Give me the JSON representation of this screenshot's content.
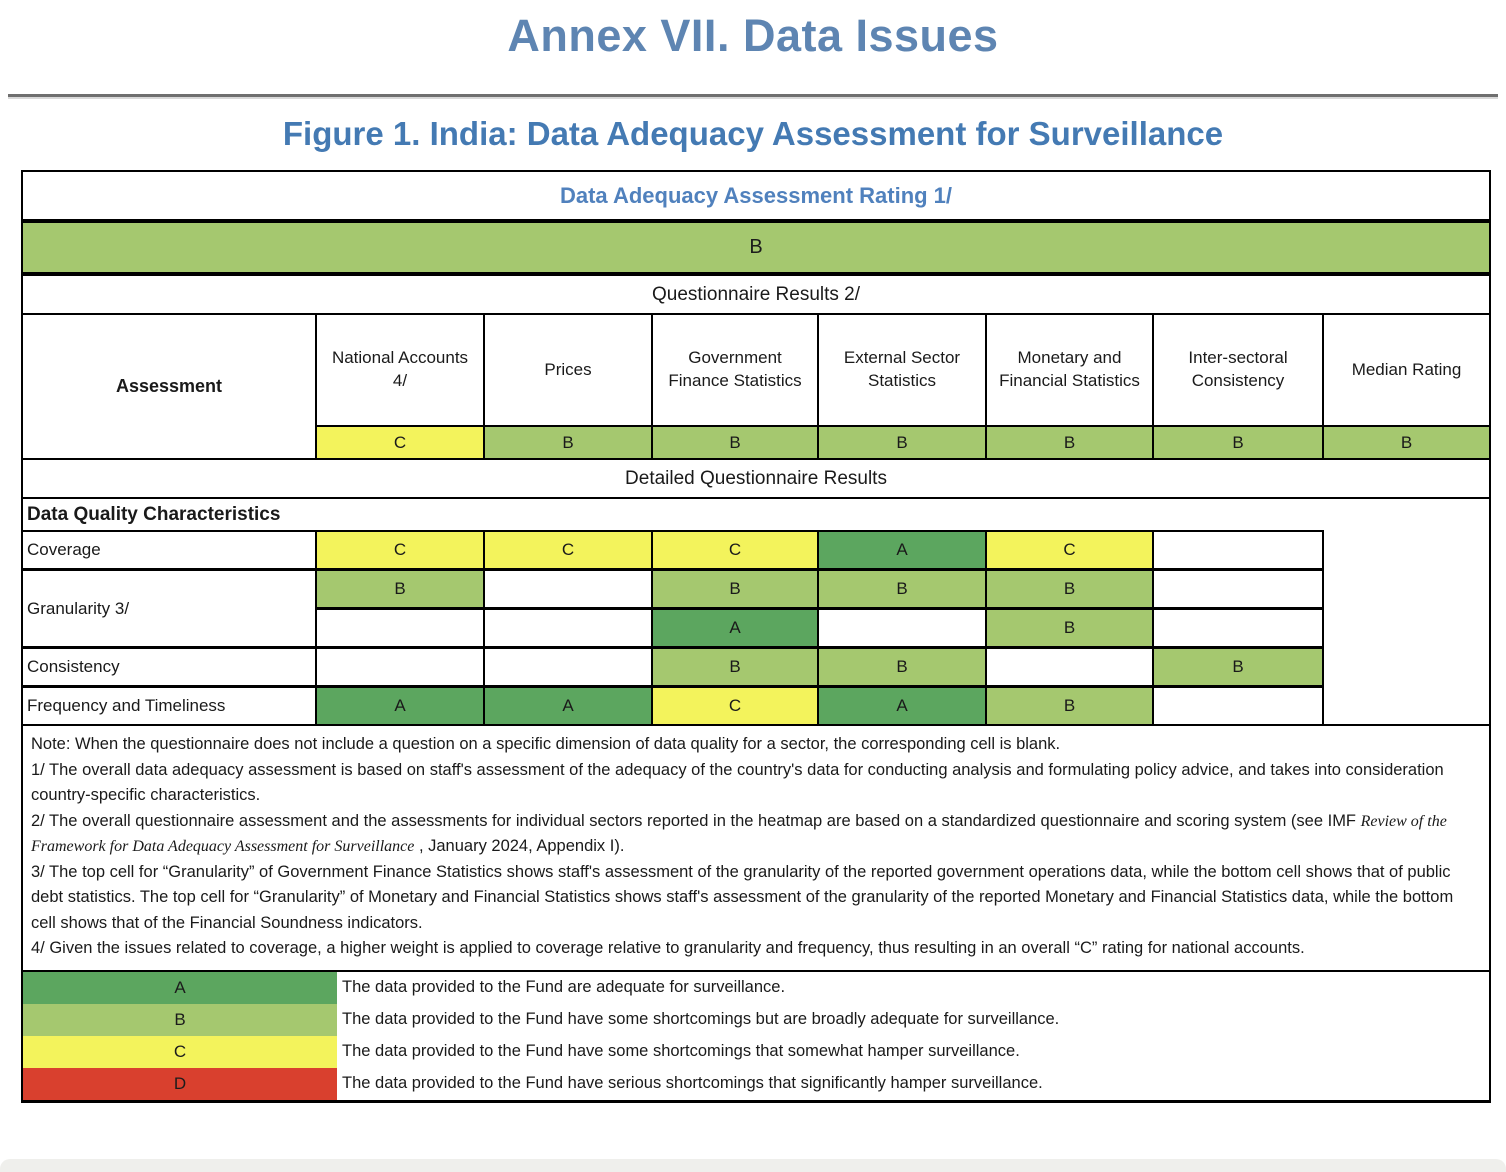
{
  "palette": {
    "grade-a": "#5CA65F",
    "grade-b": "#A5C86F",
    "grade-c": "#F3F35C",
    "grade-d": "#D9402E",
    "title-blue": "#5E85B2",
    "figure-blue": "#447AB3",
    "rating-blue": "#5081BD"
  },
  "page": {
    "title": "Annex VII. Data Issues",
    "figure_title": "Figure 1. India: Data Adequacy Assessment for Surveillance"
  },
  "assessment_table": {
    "rating_title": "Data Adequacy Assessment Rating 1/",
    "overall_rating": "B",
    "questionnaire_title": "Questionnaire Results 2/",
    "assessment_label": "Assessment",
    "sector_columns": [
      {
        "label": "National Accounts 4/",
        "rating": "C"
      },
      {
        "label": "Prices",
        "rating": "B"
      },
      {
        "label": "Government Finance Statistics",
        "rating": "B"
      },
      {
        "label": "External Sector Statistics",
        "rating": "B"
      },
      {
        "label": "Monetary and Financial Statistics",
        "rating": "B"
      },
      {
        "label": "Inter-sectoral Consistency",
        "rating": "B"
      },
      {
        "label": "Median Rating",
        "rating": "B"
      }
    ],
    "detailed_title": "Detailed Questionnaire Results",
    "characteristics_title": "Data Quality Characteristics",
    "detail_rows": [
      {
        "label": "Coverage",
        "cells": [
          "C",
          "C",
          "C",
          "A",
          "C",
          ""
        ]
      },
      {
        "label": "Granularity 3/",
        "cells_top": [
          "B",
          "",
          "B",
          "B",
          "B",
          ""
        ],
        "cells_bottom": [
          "",
          "",
          "A",
          "",
          "B",
          ""
        ]
      },
      {
        "label": "Consistency",
        "cells": [
          "",
          "",
          "B",
          "B",
          "",
          "B"
        ]
      },
      {
        "label": "Frequency and Timeliness",
        "cells": [
          "A",
          "A",
          "C",
          "A",
          "B",
          ""
        ]
      }
    ]
  },
  "notes": {
    "note": "Note: When the questionnaire does not include a question on a specific dimension of data quality for a sector, the corresponding cell is blank.",
    "fn1": "1/ The overall data adequacy assessment is based on staff's assessment of the adequacy of the country's data for conducting analysis and formulating policy advice, and takes into consideration country-specific characteristics.",
    "fn2_prefix": "2/ The overall questionnaire assessment and the assessments for individual sectors reported in the heatmap are based on a standardized questionnaire and scoring system (see IMF ",
    "fn2_italic": "Review of the Framework for Data Adequacy Assessment for Surveillance",
    "fn2_suffix": " , January 2024, Appendix I).",
    "fn3": "3/ The top cell for “Granularity” of Government Finance Statistics shows staff's assessment of the granularity of the reported government operations data, while the bottom cell shows that of public debt statistics. The top cell for “Granularity” of Monetary and Financial Statistics shows staff's assessment of the granularity of the reported Monetary and Financial Statistics data, while the bottom cell shows that of the Financial Soundness indicators.",
    "fn4": "4/ Given the issues related to coverage, a higher weight is applied to coverage relative to granularity and frequency, thus resulting in an overall “C” rating for national accounts."
  },
  "legend": [
    {
      "grade": "A",
      "text": "The data provided to the Fund are adequate for surveillance."
    },
    {
      "grade": "B",
      "text": "The data provided to the Fund have some shortcomings but are broadly adequate for surveillance."
    },
    {
      "grade": "C",
      "text": "The data provided to the Fund have some shortcomings that somewhat hamper surveillance."
    },
    {
      "grade": "D",
      "text": "The data provided to the Fund have serious shortcomings that significantly hamper surveillance."
    }
  ]
}
